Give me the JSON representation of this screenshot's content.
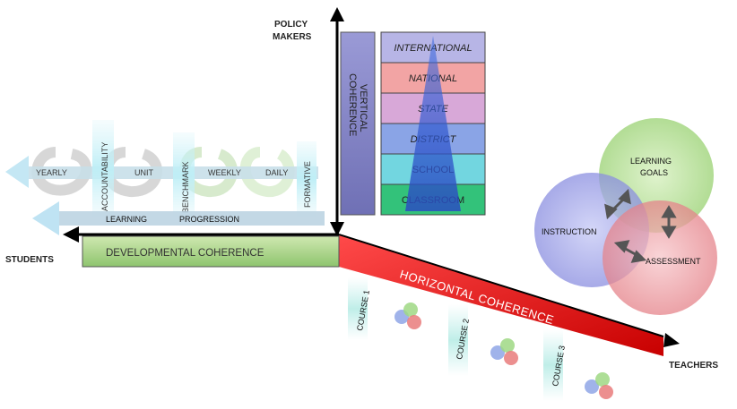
{
  "axes": {
    "top_label_line1": "POLICY",
    "top_label_line2": "MAKERS",
    "left_label": "STUDENTS",
    "right_label": "TEACHERS"
  },
  "vertical_coherence": {
    "line1": "VERTICAL",
    "line2": "COHERENCE"
  },
  "levels": [
    "INTERNATIONAL",
    "NATIONAL",
    "STATE",
    "DISTRICT",
    "SCHOOL",
    "CLASSROOM"
  ],
  "level_colors": [
    "#b7b5e6",
    "#f2a4a4",
    "#d8a8d8",
    "#8aa4e6",
    "#72d6e0",
    "#33c27a"
  ],
  "developmental_coherence": "DEVELOPMENTAL COHERENCE",
  "horizontal_coherence": "HORIZONTAL COHERENCE",
  "assessment_cycle": {
    "time_scales": [
      "YEARLY",
      "UNIT",
      "WEEKLY",
      "DAILY"
    ],
    "vertical_labels": [
      "ACCOUNTABILITY",
      "BENCHMARK",
      "FORMATIVE"
    ]
  },
  "learning_progression": {
    "left": "LEARNING",
    "right": "PROGRESSION"
  },
  "courses": [
    "COURSE 1",
    "COURSE 2",
    "COURSE 3"
  ],
  "venn": {
    "goals_line1": "LEARNING",
    "goals_line2": "GOALS",
    "instruction": "INSTRUCTION",
    "assessment": "ASSESSMENT"
  }
}
